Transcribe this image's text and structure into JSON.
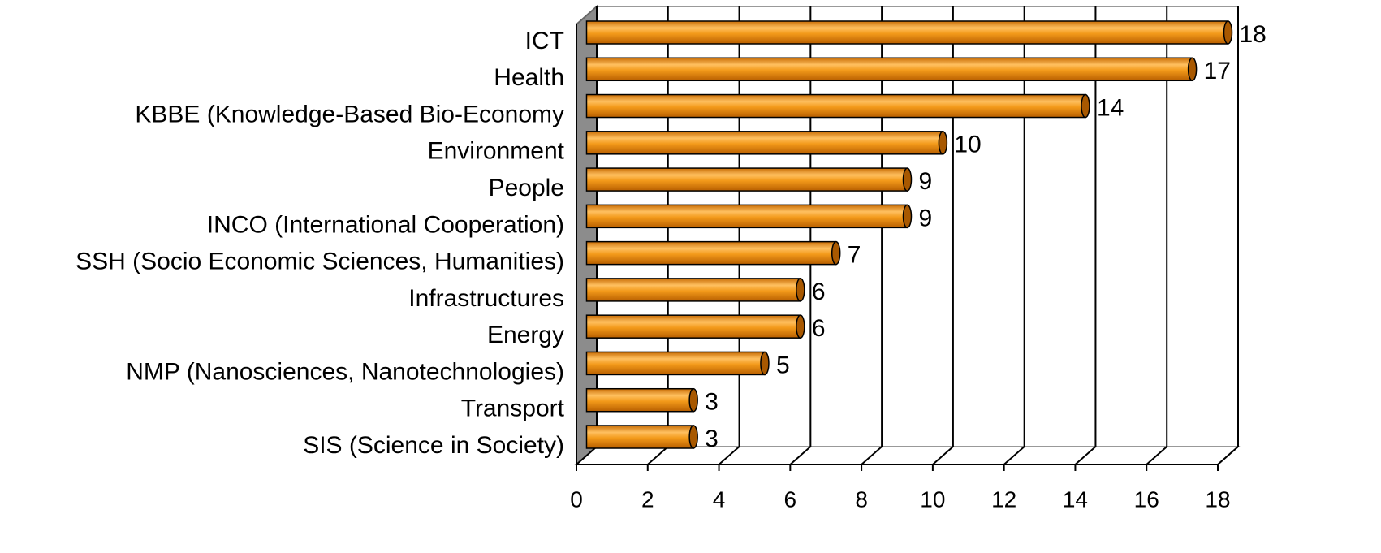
{
  "chart_data": {
    "type": "bar",
    "orientation": "horizontal",
    "three_d": true,
    "categories": [
      "ICT",
      "Health",
      "KBBE (Knowledge-Based Bio-Economy",
      "Environment",
      "People",
      "INCO (International Cooperation)",
      "SSH (Socio Economic Sciences, Humanities)",
      "Infrastructures",
      "Energy",
      "NMP (Nanosciences, Nanotechnologies)",
      "Transport",
      "SIS (Science in Society)"
    ],
    "values": [
      18,
      17,
      14,
      10,
      9,
      9,
      7,
      6,
      6,
      5,
      3,
      3
    ],
    "color": "#f39a1a",
    "xlim": [
      0,
      18
    ],
    "xticks": [
      0,
      2,
      4,
      6,
      8,
      10,
      12,
      14,
      16,
      18
    ],
    "grid": true
  }
}
